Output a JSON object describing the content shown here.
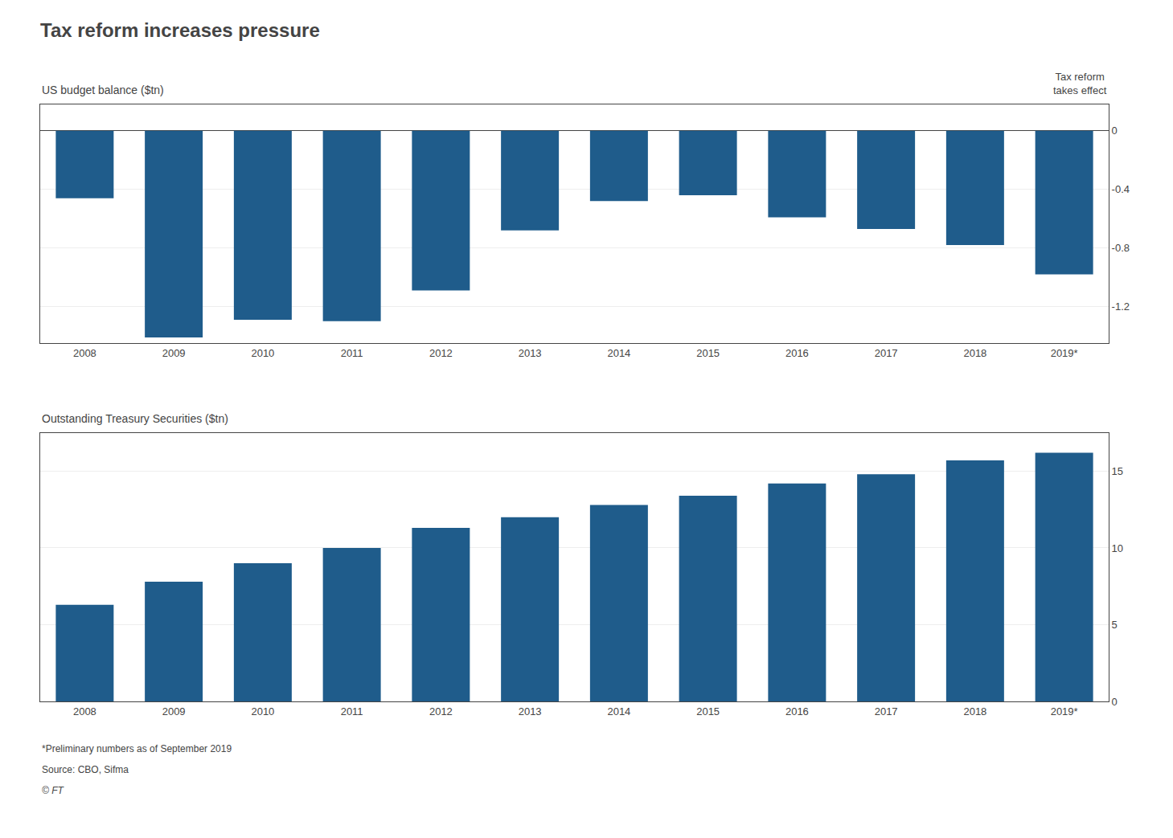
{
  "title": "Tax reform increases pressure",
  "footnotes": [
    "*Preliminary numbers as of September 2019",
    "Source: CBO, Sifma",
    "© FT"
  ],
  "chart_data": [
    {
      "type": "bar",
      "title": "US budget balance ($tn)",
      "categories": [
        "2008",
        "2009",
        "2010",
        "2011",
        "2012",
        "2013",
        "2014",
        "2015",
        "2016",
        "2017",
        "2018",
        "2019*"
      ],
      "values": [
        -0.46,
        -1.41,
        -1.29,
        -1.3,
        -1.09,
        -0.68,
        -0.48,
        -0.44,
        -0.59,
        -0.67,
        -0.78,
        -0.98
      ],
      "color": "#1f5c8b",
      "ylim": [
        -1.45,
        0.18
      ],
      "yticks": [
        0,
        -0.4,
        -0.8,
        -1.2
      ],
      "grid": true,
      "annotations": [
        "Tax reform\ntakes effect"
      ]
    },
    {
      "type": "bar",
      "title": "Outstanding Treasury Securities ($tn)",
      "categories": [
        "2008",
        "2009",
        "2010",
        "2011",
        "2012",
        "2013",
        "2014",
        "2015",
        "2016",
        "2017",
        "2018",
        "2019*"
      ],
      "values": [
        6.3,
        7.8,
        9.0,
        10.0,
        11.3,
        12.0,
        12.8,
        13.4,
        14.2,
        14.8,
        15.7,
        16.2
      ],
      "color": "#1f5c8b",
      "ylim": [
        0,
        17.5
      ],
      "yticks": [
        0,
        5,
        10,
        15
      ],
      "grid": true
    }
  ]
}
